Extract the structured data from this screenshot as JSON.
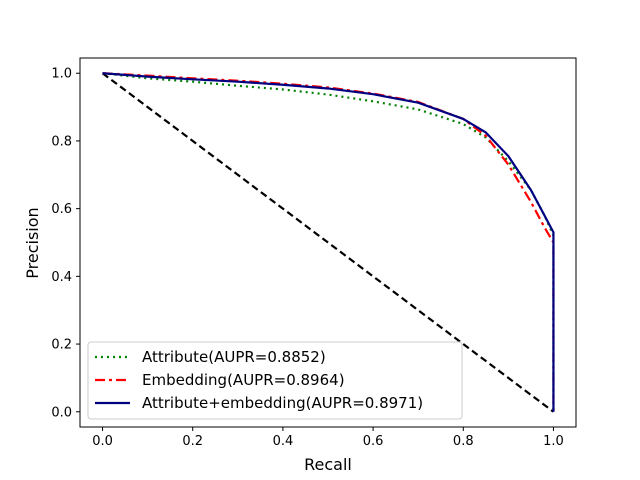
{
  "chart_data": {
    "type": "line",
    "title": "",
    "xlabel": "Recall",
    "ylabel": "Precision",
    "xlim": [
      -0.05,
      1.05
    ],
    "ylim": [
      -0.045,
      1.045
    ],
    "x_ticks": [
      "0.0",
      "0.2",
      "0.4",
      "0.6",
      "0.8",
      "1.0"
    ],
    "y_ticks": [
      "0.0",
      "0.2",
      "0.4",
      "0.6",
      "0.8",
      "1.0"
    ],
    "grid": false,
    "legend_position": "lower-left",
    "series": [
      {
        "name": "Attribute(AUPR=0.8852)",
        "color": "#008000",
        "style": "dotted",
        "x": [
          0.0,
          0.1,
          0.2,
          0.3,
          0.4,
          0.5,
          0.6,
          0.7,
          0.8,
          0.85,
          0.9,
          0.95,
          0.98,
          1.0,
          1.0
        ],
        "y": [
          1.0,
          0.985,
          0.975,
          0.963,
          0.952,
          0.937,
          0.917,
          0.893,
          0.85,
          0.81,
          0.74,
          0.655,
          0.58,
          0.52,
          0.0
        ]
      },
      {
        "name": "Embedding(AUPR=0.8964)",
        "color": "#ff0000",
        "style": "dashdot",
        "x": [
          0.0,
          0.1,
          0.2,
          0.3,
          0.4,
          0.5,
          0.6,
          0.7,
          0.8,
          0.85,
          0.9,
          0.95,
          0.98,
          1.0,
          1.0
        ],
        "y": [
          1.0,
          0.993,
          0.985,
          0.978,
          0.969,
          0.958,
          0.94,
          0.915,
          0.865,
          0.815,
          0.73,
          0.62,
          0.545,
          0.5,
          0.0
        ]
      },
      {
        "name": "Attribute+embedding(AUPR=0.8971)",
        "color": "#000080",
        "style": "solid",
        "x": [
          0.0,
          0.1,
          0.2,
          0.3,
          0.4,
          0.5,
          0.6,
          0.7,
          0.8,
          0.85,
          0.9,
          0.95,
          0.98,
          1.0,
          1.0
        ],
        "y": [
          1.0,
          0.99,
          0.982,
          0.975,
          0.966,
          0.955,
          0.938,
          0.913,
          0.865,
          0.825,
          0.755,
          0.655,
          0.58,
          0.53,
          0.0
        ]
      }
    ],
    "baseline": {
      "color": "#000000",
      "style": "dashed",
      "x": [
        0.0,
        1.0
      ],
      "y": [
        1.0,
        0.0
      ]
    }
  }
}
